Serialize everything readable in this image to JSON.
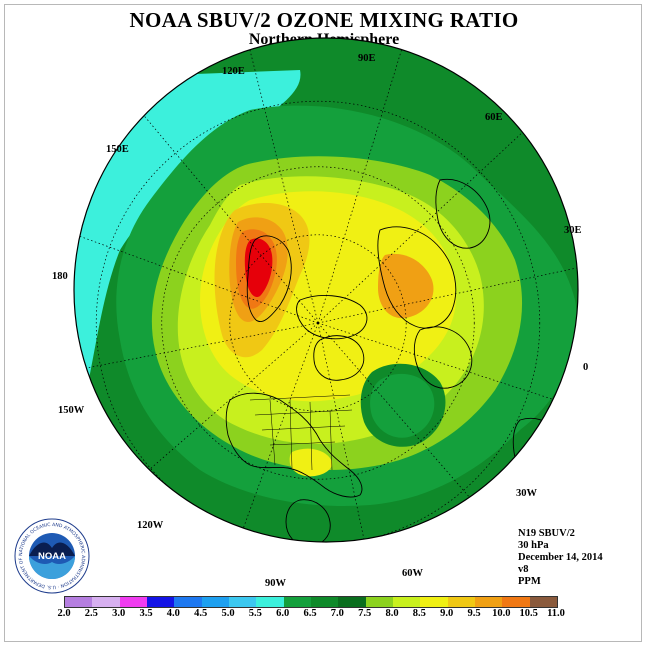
{
  "title": "NOAA SBUV/2 OZONE MIXING RATIO",
  "subtitle": "Northern Hemisphere",
  "longitude_labels": [
    "120E",
    "90E",
    "60E",
    "150E",
    "30E",
    "180",
    "0",
    "150W",
    "30W",
    "120W",
    "60W",
    "90W"
  ],
  "info": {
    "instrument": "N19 SBUV/2",
    "pressure": "30 hPa",
    "date": "December 14, 2014",
    "version": "v8",
    "units": "PPM"
  },
  "logo": {
    "text": "NOAA",
    "ring_text": "NATIONAL OCEANIC AND ATMOSPHERIC ADMINISTRATION · U.S. DEPARTMENT OF COMMERCE ·",
    "icon": "noaa-logo-icon"
  },
  "colorbar": {
    "colors": [
      "#b57ee0",
      "#d7b0f0",
      "#f03cf0",
      "#9a2ec8",
      "#1414e6",
      "#1e78f0",
      "#1ea0f0",
      "#3cc8f0",
      "#3cf0dc",
      "#14a03c",
      "#0f8a2a",
      "#0a6e1e",
      "#8cd21e",
      "#c8f01e",
      "#e6f014",
      "#f0f014",
      "#f0c814",
      "#f0a014",
      "#f07814",
      "#f0280a",
      "#e6000a",
      "#8a5a3c"
    ],
    "tick_labels": [
      "2.0",
      "2.5",
      "3.0",
      "3.5",
      "4.0",
      "4.5",
      "5.0",
      "5.5",
      "6.0",
      "6.5",
      "7.0",
      "7.5",
      "8.0",
      "8.5",
      "9.0",
      "9.5",
      "10.0",
      "10.5",
      "11.0"
    ]
  },
  "field_colors": {
    "c55": "#3cf0dc",
    "c60": "#14a03c",
    "c65": "#0f8a2a",
    "c70": "#8cd21e",
    "c75": "#c8f01e",
    "c80": "#f0f014",
    "c85": "#f0c814",
    "c90": "#f0a014",
    "c95": "#f07814",
    "c100": "#f0280a",
    "c105": "#e6000a"
  }
}
